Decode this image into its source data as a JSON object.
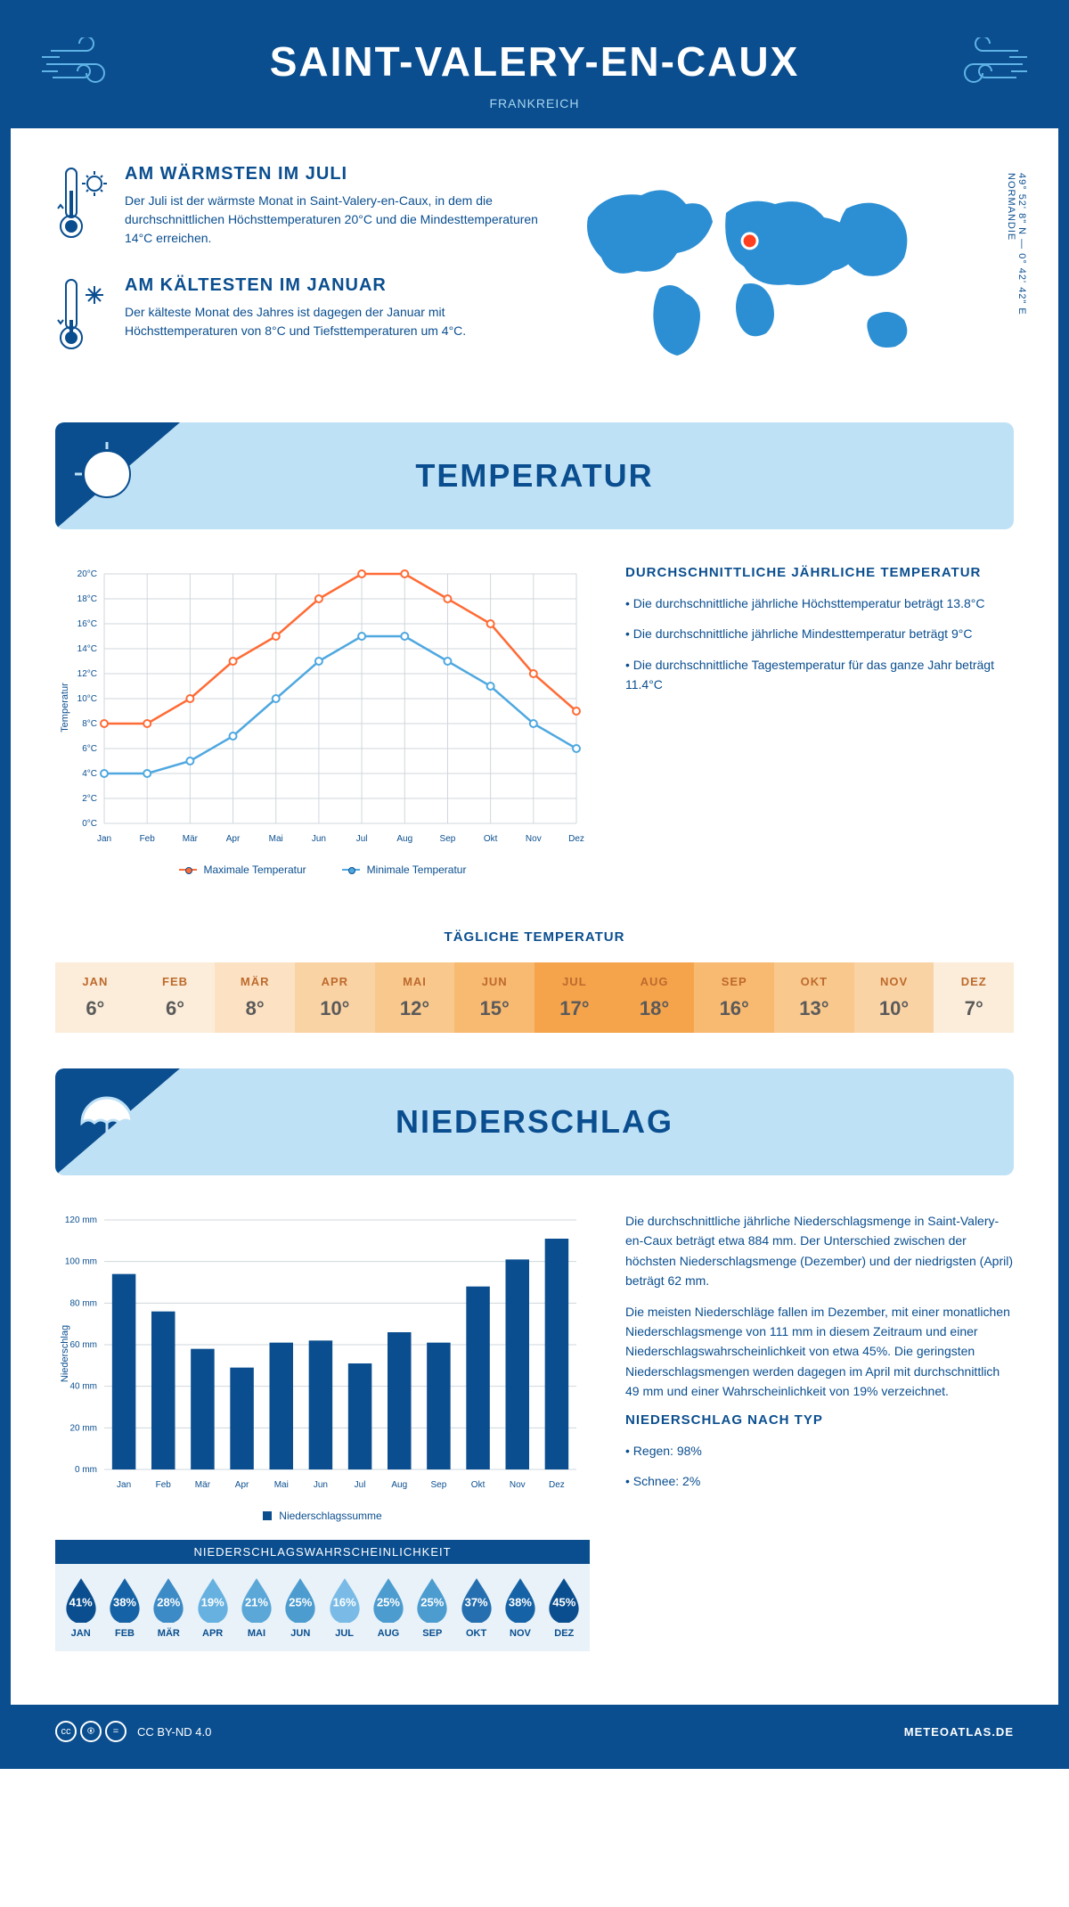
{
  "header": {
    "title": "SAINT-VALERY-EN-CAUX",
    "subtitle": "FRANKREICH"
  },
  "coords": {
    "region": "NORMANDIE",
    "lat": "49° 52' 8\" N",
    "lon": "0° 42' 42\" E"
  },
  "facts": {
    "warm": {
      "title": "AM WÄRMSTEN IM JULI",
      "text": "Der Juli ist der wärmste Monat in Saint-Valery-en-Caux, in dem die durchschnittlichen Höchsttemperaturen 20°C und die Mindesttemperaturen 14°C erreichen."
    },
    "cold": {
      "title": "AM KÄLTESTEN IM JANUAR",
      "text": "Der kälteste Monat des Jahres ist dagegen der Januar mit Höchsttemperaturen von 8°C und Tiefsttemperaturen um 4°C."
    }
  },
  "map_marker": {
    "cx_pct": 48,
    "cy_pct": 36
  },
  "sections": {
    "temperature": "TEMPERATUR",
    "precipitation": "NIEDERSCHLAG"
  },
  "months": [
    "Jan",
    "Feb",
    "Mär",
    "Apr",
    "Mai",
    "Jun",
    "Jul",
    "Aug",
    "Sep",
    "Okt",
    "Nov",
    "Dez"
  ],
  "months_upper": [
    "JAN",
    "FEB",
    "MÄR",
    "APR",
    "MAI",
    "JUN",
    "JUL",
    "AUG",
    "SEP",
    "OKT",
    "NOV",
    "DEZ"
  ],
  "temp_chart": {
    "type": "line",
    "ylabel": "Temperatur",
    "ylim": [
      0,
      20
    ],
    "ytick_step": 2,
    "max_series": {
      "label": "Maximale Temperatur",
      "color": "#ff6b35",
      "values": [
        8,
        8,
        10,
        13,
        15,
        18,
        20,
        20,
        18,
        16,
        12,
        9
      ]
    },
    "min_series": {
      "label": "Minimale Temperatur",
      "color": "#4fa8e0",
      "values": [
        4,
        4,
        5,
        7,
        10,
        13,
        15,
        15,
        13,
        11,
        8,
        6
      ]
    },
    "grid_color": "#d0d7dc",
    "bg": "#ffffff"
  },
  "temp_text": {
    "title": "DURCHSCHNITTLICHE JÄHRLICHE TEMPERATUR",
    "b1": "• Die durchschnittliche jährliche Höchsttemperatur beträgt 13.8°C",
    "b2": "• Die durchschnittliche jährliche Mindesttemperatur beträgt 9°C",
    "b3": "• Die durchschnittliche Tagestemperatur für das ganze Jahr beträgt 11.4°C"
  },
  "daily_temp": {
    "title": "TÄGLICHE TEMPERATUR",
    "values": [
      "6°",
      "6°",
      "8°",
      "10°",
      "12°",
      "15°",
      "17°",
      "18°",
      "16°",
      "13°",
      "10°",
      "7°"
    ],
    "colors": [
      "#fbedda",
      "#fbedda",
      "#fce2c3",
      "#fad3a5",
      "#f9c88d",
      "#f8b971",
      "#f5a44c",
      "#f5a44c",
      "#f8b971",
      "#f9c88d",
      "#fad3a5",
      "#fbedda"
    ]
  },
  "precip_chart": {
    "type": "bar",
    "ylabel": "Niederschlag",
    "ylim": [
      0,
      120
    ],
    "ytick_step": 20,
    "values": [
      94,
      76,
      58,
      49,
      61,
      62,
      51,
      66,
      61,
      88,
      101,
      111
    ],
    "bar_color": "#0a4e8f",
    "legend": "Niederschlagssumme",
    "grid_color": "#d0d7dc"
  },
  "precip_text": {
    "p1": "Die durchschnittliche jährliche Niederschlagsmenge in Saint-Valery-en-Caux beträgt etwa 884 mm. Der Unterschied zwischen der höchsten Niederschlagsmenge (Dezember) und der niedrigsten (April) beträgt 62 mm.",
    "p2": "Die meisten Niederschläge fallen im Dezember, mit einer monatlichen Niederschlagsmenge von 111 mm in diesem Zeitraum und einer Niederschlagswahrscheinlichkeit von etwa 45%. Die geringsten Niederschlagsmengen werden dagegen im April mit durchschnittlich 49 mm und einer Wahrscheinlichkeit von 19% verzeichnet.",
    "type_title": "NIEDERSCHLAG NACH TYP",
    "rain": "• Regen: 98%",
    "snow": "• Schnee: 2%"
  },
  "precip_prob": {
    "title": "NIEDERSCHLAGSWAHRSCHEINLICHKEIT",
    "values": [
      41,
      38,
      28,
      19,
      21,
      25,
      16,
      25,
      25,
      37,
      38,
      45
    ],
    "colors": [
      "#0a4e8f",
      "#1563a6",
      "#3d8bc6",
      "#66b1e0",
      "#5aa7d8",
      "#4c9cd0",
      "#79bbe6",
      "#4c9cd0",
      "#4c9cd0",
      "#256fb0",
      "#1563a6",
      "#0a4e8f"
    ]
  },
  "footer": {
    "license": "CC BY-ND 4.0",
    "site": "METEOATLAS.DE"
  }
}
